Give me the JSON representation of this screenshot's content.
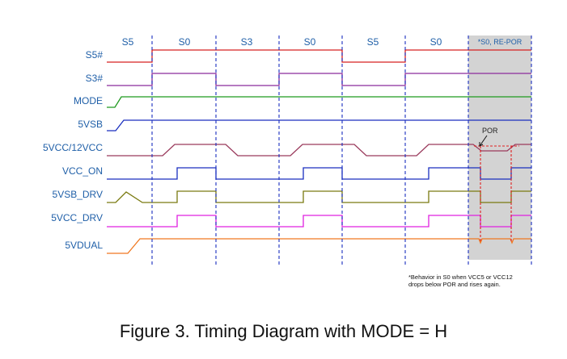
{
  "caption": "Figure 3. Timing Diagram with MODE = H",
  "states": [
    "S5",
    "S0",
    "S3",
    "S0",
    "S5",
    "S0",
    "*S0, RE-POR"
  ],
  "signals": [
    {
      "name": "S5#",
      "color": "#d62020"
    },
    {
      "name": "S3#",
      "color": "#8a2a9c"
    },
    {
      "name": "MODE",
      "color": "#1f9a1f"
    },
    {
      "name": "5VSB",
      "color": "#1a2fbf"
    },
    {
      "name": "5VCC/12VCC",
      "color": "#9a3a5c"
    },
    {
      "name": "VCC_ON",
      "color": "#1a2fbf"
    },
    {
      "name": "5VSB_DRV",
      "color": "#7a7a10"
    },
    {
      "name": "5VCC_DRV",
      "color": "#e020e0"
    },
    {
      "name": "5VDUAL",
      "color": "#f07820"
    }
  ],
  "por_label": "POR",
  "note_lines": [
    "*Behavior in S0 when VCC5 or VCC12",
    "drops below POR and rises again."
  ],
  "colors": {
    "boundary": "#1a2fbf",
    "shade": "#d3d3d3",
    "por_marker": "#e02020"
  }
}
